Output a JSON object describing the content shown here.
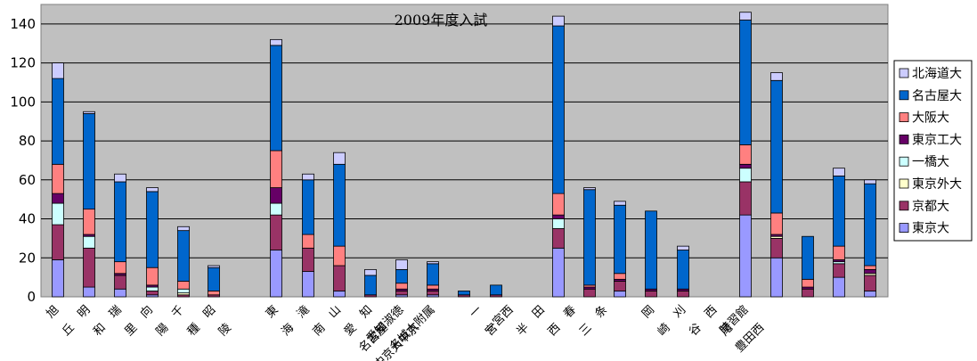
{
  "chart_data": {
    "type": "bar",
    "stacked": true,
    "title": "2009年度入試",
    "xlabel": "",
    "ylabel": "",
    "ylim": [
      0,
      150
    ],
    "yticks": [
      0,
      20,
      40,
      60,
      80,
      100,
      120,
      140
    ],
    "grid": true,
    "legend_position": "right",
    "groups": [
      [
        "旭",
        "丘",
        "明",
        "和",
        "瑞",
        "里",
        "向",
        "陽",
        "千",
        "種",
        "昭",
        "陵"
      ],
      [
        "東",
        "海",
        "滝",
        "南",
        "山",
        "愛",
        "知",
        "名古屋",
        "愛知淑徳",
        "中京大中京",
        "名城大附属"
      ],
      [
        "一",
        "宮",
        "一宮西",
        "半",
        "田",
        "西",
        "春",
        "三",
        "条"
      ],
      [
        "岡",
        "崎",
        "刈",
        "谷",
        "西",
        "尾",
        "時習館",
        "豊田西"
      ]
    ],
    "categories": [
      "旭丘",
      "明和",
      "瑞陵",
      "向陽",
      "千種",
      "昭和",
      "東海",
      "滝",
      "南山",
      "愛知",
      "名古屋",
      "愛知淑徳",
      "中京大中京",
      "名城大附属",
      "一宮",
      "一宮西",
      "半田",
      "西春",
      "三条",
      "岡崎",
      "刈谷",
      "西尾",
      "時習館",
      "豊田西"
    ],
    "series": [
      {
        "name": "東京大",
        "color": "#9999ff",
        "values": [
          19,
          5,
          4,
          1,
          0,
          0,
          24,
          13,
          3,
          0,
          1,
          1,
          0,
          0,
          25,
          0,
          3,
          0,
          0,
          42,
          20,
          0,
          10,
          3
        ]
      },
      {
        "name": "京都大",
        "color": "#993366",
        "values": [
          18,
          20,
          7,
          2,
          1,
          1,
          18,
          12,
          13,
          1,
          2,
          2,
          1,
          1,
          10,
          4,
          5,
          3,
          3,
          17,
          10,
          4,
          7,
          8
        ]
      },
      {
        "name": "東京外大",
        "color": "#ffffcc",
        "values": [
          0,
          0,
          0,
          0,
          1,
          0,
          0,
          0,
          0,
          0,
          0,
          0,
          0,
          0,
          0,
          0,
          0,
          0,
          0,
          0,
          1,
          0,
          0,
          1
        ]
      },
      {
        "name": "一橋大",
        "color": "#ccffff",
        "values": [
          11,
          6,
          0,
          2,
          2,
          0,
          6,
          0,
          0,
          0,
          0,
          0,
          0,
          0,
          5,
          0,
          0,
          0,
          0,
          7,
          0,
          0,
          1,
          0
        ]
      },
      {
        "name": "東京工大",
        "color": "#660066",
        "values": [
          5,
          1,
          1,
          1,
          0,
          0,
          8,
          0,
          0,
          0,
          1,
          1,
          0,
          0,
          2,
          1,
          1,
          1,
          1,
          2,
          1,
          1,
          1,
          2
        ]
      },
      {
        "name": "大阪大",
        "color": "#ff8080",
        "values": [
          15,
          13,
          6,
          9,
          4,
          2,
          19,
          7,
          10,
          0,
          3,
          2,
          0,
          0,
          11,
          1,
          3,
          0,
          0,
          10,
          11,
          4,
          7,
          2
        ]
      },
      {
        "name": "名古屋大",
        "color": "#0066cc",
        "values": [
          44,
          49,
          41,
          39,
          26,
          12,
          54,
          28,
          42,
          10,
          7,
          11,
          2,
          5,
          86,
          49,
          35,
          40,
          20,
          64,
          68,
          22,
          36,
          42
        ]
      },
      {
        "name": "北海道大",
        "color": "#ccccff",
        "values": [
          8,
          1,
          4,
          2,
          2,
          1,
          3,
          3,
          6,
          3,
          5,
          1,
          0,
          0,
          5,
          1,
          2,
          0,
          2,
          4,
          4,
          0,
          4,
          2
        ]
      }
    ]
  }
}
